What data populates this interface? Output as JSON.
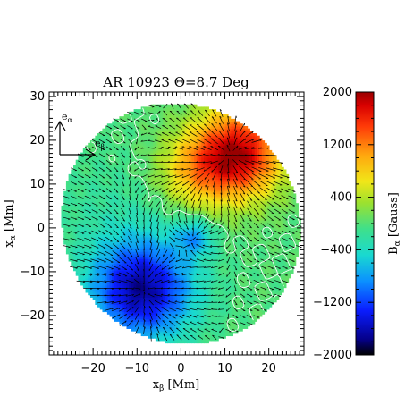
{
  "chart_data": {
    "type": "heatmap",
    "title": "AR 10923 Θ=8.7 Deg",
    "xlabel_main": "x",
    "xlabel_sub": "β",
    "xlabel_unit": " [Mm]",
    "ylabel_main": "x",
    "ylabel_sub": "α",
    "ylabel_unit": " [Mm]",
    "xlim": [
      -30,
      28
    ],
    "ylim": [
      -29,
      31
    ],
    "xticks": [
      -20,
      -10,
      0,
      10,
      20
    ],
    "yticks": [
      -20,
      -10,
      0,
      10,
      20,
      30
    ],
    "colorbar": {
      "label_main": "B",
      "label_sub": "α",
      "label_unit": " [Gauss]",
      "range": [
        -2000,
        2000
      ],
      "ticks": [
        2000,
        1200,
        400,
        -400,
        -1200,
        -2000
      ],
      "ticklabels": [
        "2000",
        "1200",
        "400",
        "−400",
        "−1200",
        "−2000"
      ]
    },
    "field_of_view": {
      "shape": "ellipse",
      "center": [
        0,
        1
      ],
      "semi_axes": [
        26.5,
        28
      ],
      "rotation_deg": 38
    },
    "sources": [
      {
        "x": 13,
        "y": 17,
        "strength": 1900,
        "width": 7
      },
      {
        "x": 3,
        "y": 13,
        "strength": 700,
        "width": 6
      },
      {
        "x": -9,
        "y": -14,
        "strength": -1700,
        "width": 8
      },
      {
        "x": 3,
        "y": -2,
        "strength": -700,
        "width": 3
      },
      {
        "x": -17,
        "y": 4,
        "strength": -150,
        "width": 10
      }
    ],
    "background_field": 0,
    "vectors": {
      "spacing": 1.6,
      "max_length": 2.4
    },
    "contour": {
      "color": "#ffffff",
      "level": 0
    },
    "basis_vectors": {
      "e_alpha_main": "e",
      "e_alpha_sub": "α",
      "e_beta_main": "e",
      "e_beta_sub": "β"
    }
  }
}
